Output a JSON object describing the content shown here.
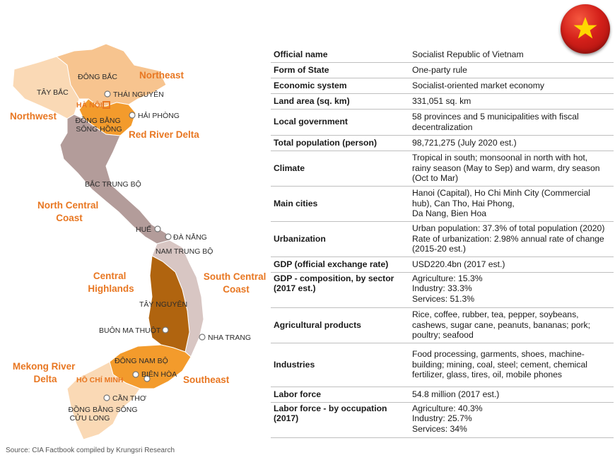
{
  "map": {
    "regions": {
      "northeast": "Northeast",
      "northwest": "Northwest",
      "red_river_delta": "Red River Delta",
      "north_central_coast": [
        "North Central",
        "Coast"
      ],
      "central_highlands": [
        "Central",
        "Highlands"
      ],
      "south_central_coast": [
        "South Central",
        "Coast"
      ],
      "southeast": "Southeast",
      "mekong_river_delta": [
        "Mekong River",
        "Delta"
      ]
    },
    "areas": {
      "dong_bac": "ĐÔNG BẮC",
      "tay_bac": "TÂY BẮC",
      "dong_bang_song_hong": [
        "ĐỒNG BẰNG",
        "SÔNG HỒNG"
      ],
      "bac_trung_bo": "BẮC TRUNG BỘ",
      "nam_trung_bo": "NAM TRUNG BỘ",
      "tay_nguyen": "TÂY NGUYÊN",
      "dong_nam_bo": "ĐÔNG NAM BỘ",
      "dong_bang_song_cuu_long": [
        "ĐỒNG BẰNG SÔNG",
        "CỬU LONG"
      ]
    },
    "cities": {
      "thai_nguyen": "THÁI NGUYÊN",
      "ha_noi": "HÀ NỘI",
      "hai_phong": "HẢI PHÒNG",
      "hue": "HUẾ",
      "da_nang": "ĐÀ NẴNG",
      "buon_ma_thuot": "BUÔN MA THUỘT",
      "nha_trang": "NHA TRANG",
      "bien_hoa": "BIÊN HÒA",
      "ho_chi_minh": "HỒ CHÍ MINH",
      "can_tho": "CẦN THƠ"
    },
    "colors": {
      "north_light": "#fad9b5",
      "north_mid": "#f7c48f",
      "red_river": "#f39b2c",
      "central_mauve": "#b39c9a",
      "south_central": "#d8c6c3",
      "highlands": "#b0640f",
      "southeast": "#f39b2c",
      "mekong": "#fad9b5",
      "label_orange": "#e87722"
    }
  },
  "flag": {
    "icon": "vietnam-flag",
    "bg": "#d4201a",
    "star": "#ffd700"
  },
  "facts": [
    {
      "key": "Official name",
      "value": [
        "Socialist Republic of Vietnam"
      ]
    },
    {
      "key": "Form of State",
      "value": [
        "One-party rule"
      ]
    },
    {
      "key": "Economic system",
      "value": [
        "Socialist-oriented market economy"
      ]
    },
    {
      "key": "Land area (sq. km)",
      "value": [
        "331,051 sq. km"
      ]
    },
    {
      "key": "Local government",
      "value": [
        "58 provinces and 5 municipalities with fiscal",
        "decentralization"
      ]
    },
    {
      "key": "Total population (person)",
      "value": [
        "98,721,275 (July 2020 est.)"
      ]
    },
    {
      "key": "Climate",
      "value": [
        "Tropical in south; monsoonal in north with hot,",
        "rainy season (May to Sep) and warm, dry season",
        "(Oct to Mar)"
      ]
    },
    {
      "key": "Main cities",
      "value": [
        "Hanoi (Capital), Ho Chi Minh City (Commercial",
        "hub), Can Tho, Hai Phong,",
        "Da Nang, Bien Hoa"
      ]
    },
    {
      "key": "Urbanization",
      "value": [
        "Urban population: 37.3% of total population (2020)",
        "Rate of urbanization: 2.98% annual rate of change",
        "(2015-20 est.)"
      ]
    },
    {
      "key": "GDP (official exchange rate)",
      "value": [
        "USD220.4bn (2017 est.)"
      ]
    },
    {
      "key": "GDP - composition, by sector (2017 est.)",
      "value": [
        "Agriculture: 15.3%",
        "Industry: 33.3%",
        "Services: 51.3%"
      ]
    },
    {
      "key": "Agricultural products",
      "value": [
        "Rice, coffee, rubber, tea, pepper, soybeans,",
        "cashews, sugar cane, peanuts, bananas; pork;",
        "poultry; seafood"
      ]
    },
    {
      "key": "Industries",
      "value": [
        "Food processing, garments, shoes, machine-",
        "building; mining, coal, steel; cement, chemical",
        "fertilizer, glass, tires, oil, mobile phones"
      ]
    },
    {
      "key": "Labor force",
      "value": [
        "54.8 million (2017 est.)"
      ]
    },
    {
      "key": "Labor force - by occupation (2017)",
      "value": [
        "Agriculture: 40.3%",
        "Industry: 25.7%",
        "Services: 34%"
      ]
    }
  ],
  "source": "Source: CIA Factbook compiled by Krungsri Research"
}
